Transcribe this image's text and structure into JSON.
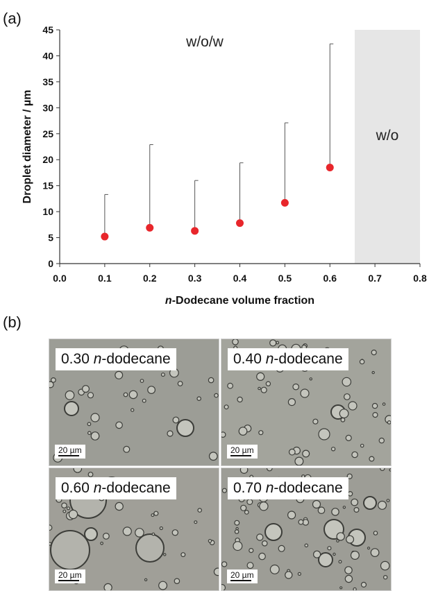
{
  "panels": {
    "a": "(a)",
    "b": "(b)"
  },
  "chart_data": {
    "type": "scatter",
    "xlabel_prefix": "n",
    "xlabel_rest": "-Dodecane volume fraction",
    "ylabel": "Droplet diameter / µm",
    "xlim": [
      0.0,
      0.8
    ],
    "ylim": [
      0,
      45
    ],
    "xticks": [
      "0.0",
      "0.1",
      "0.2",
      "0.3",
      "0.4",
      "0.5",
      "0.6",
      "0.7",
      "0.8"
    ],
    "yticks": [
      "0",
      "5",
      "10",
      "15",
      "20",
      "25",
      "30",
      "35",
      "40",
      "45"
    ],
    "grid": false,
    "series": [
      {
        "color": "#e8262b",
        "x": [
          0.1,
          0.2,
          0.3,
          0.4,
          0.5,
          0.6
        ],
        "y": [
          5.2,
          6.9,
          6.3,
          7.8,
          11.7,
          18.5
        ],
        "error_upper": [
          13.3,
          22.9,
          16.0,
          19.4,
          27.1,
          42.3
        ]
      }
    ],
    "regions": [
      {
        "label": "w/o/w",
        "from": 0.0,
        "to": 0.655,
        "shaded": false
      },
      {
        "label": "w/o",
        "from": 0.655,
        "to": 0.8,
        "shaded": true,
        "color": "#e6e6e6"
      }
    ]
  },
  "micrographs": [
    {
      "fraction": "0.30",
      "italic": "n",
      "rest": "-dodecane",
      "scale": "20 µm"
    },
    {
      "fraction": "0.40",
      "italic": "n",
      "rest": "-dodecane",
      "scale": "20 µm"
    },
    {
      "fraction": "0.60",
      "italic": "n",
      "rest": "-dodecane",
      "scale": "20 µm"
    },
    {
      "fraction": "0.70",
      "italic": "n",
      "rest": "-dodecane",
      "scale": "20 µm"
    }
  ]
}
